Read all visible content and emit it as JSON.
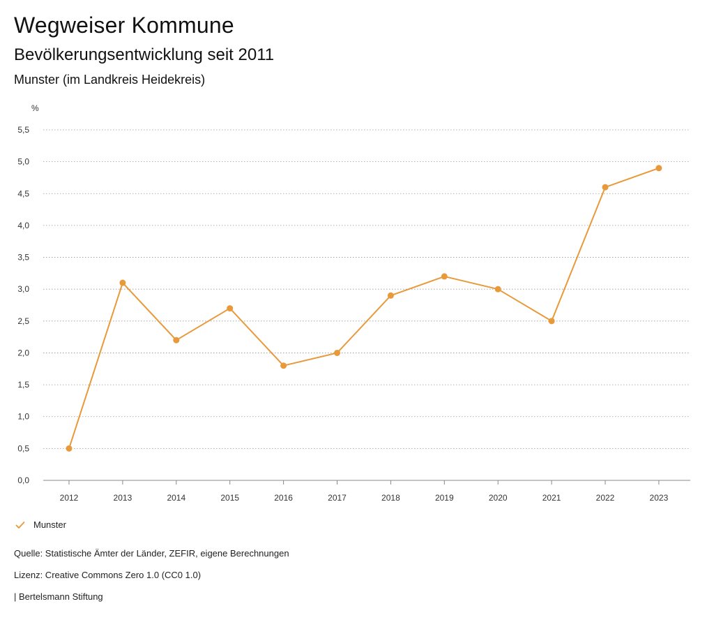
{
  "header": {
    "title": "Wegweiser Kommune",
    "subtitle": "Bevölkerungsentwicklung seit 2011",
    "region": "Munster (im Landkreis Heidekreis)"
  },
  "chart_data": {
    "type": "line",
    "title": "Bevölkerungsentwicklung seit 2011",
    "ylabel": "%",
    "xlabel": "",
    "categories": [
      "2012",
      "2013",
      "2014",
      "2015",
      "2016",
      "2017",
      "2018",
      "2019",
      "2020",
      "2021",
      "2022",
      "2023"
    ],
    "series": [
      {
        "name": "Munster",
        "values": [
          0.5,
          3.1,
          2.2,
          2.7,
          1.8,
          2.0,
          2.9,
          3.2,
          3.0,
          2.5,
          4.6,
          4.9
        ],
        "color": "#E8993A"
      }
    ],
    "ylim": [
      0,
      5.5
    ],
    "yticks": [
      0,
      0.5,
      1.0,
      1.5,
      2.0,
      2.5,
      3.0,
      3.5,
      4.0,
      4.5,
      5.0,
      5.5
    ],
    "ytick_labels": [
      "0,0",
      "0,5",
      "1,0",
      "1,5",
      "2,0",
      "2,5",
      "3,0",
      "3,5",
      "4,0",
      "4,5",
      "5,0",
      "5,5"
    ],
    "grid": true,
    "grid_style": "dotted",
    "legend_position": "bottom-left"
  },
  "legend": {
    "label": "Munster",
    "icon": "check-icon"
  },
  "footer": {
    "source": "Quelle: Statistische Ämter der Länder, ZEFIR, eigene Berechnungen",
    "license": "Lizenz: Creative Commons Zero 1.0 (CC0 1.0)",
    "publisher": "| Bertelsmann Stiftung"
  }
}
